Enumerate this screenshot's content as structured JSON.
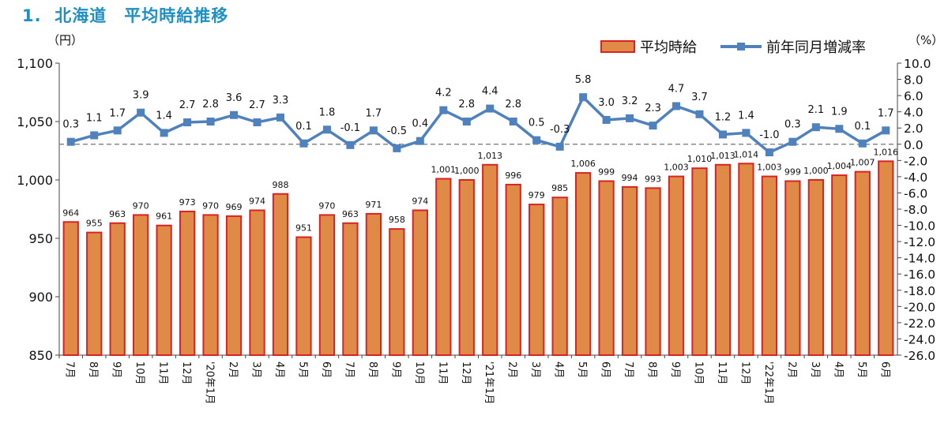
{
  "title": "1.  北海道　平均時給推移",
  "left_unit": "（円）",
  "right_unit": "（%）",
  "legend": {
    "bar": "平均時給",
    "line": "前年同月増減率"
  },
  "colors": {
    "bar_fill": "#e08a47",
    "bar_stroke": "#d92323",
    "line": "#4f81bd",
    "axis": "#444444",
    "zero_line": "#888888"
  },
  "chart_data": {
    "type": "bar+line",
    "title": "1.  北海道　平均時給推移",
    "categories": [
      "7月",
      "8月",
      "9月",
      "10月",
      "11月",
      "12月",
      "'20年1月",
      "2月",
      "3月",
      "4月",
      "5月",
      "6月",
      "7月",
      "8月",
      "9月",
      "10月",
      "11月",
      "12月",
      "'21年1月",
      "2月",
      "3月",
      "4月",
      "5月",
      "6月",
      "7月",
      "8月",
      "9月",
      "10月",
      "11月",
      "12月",
      "'22年1月",
      "2月",
      "3月",
      "4月",
      "5月",
      "6月"
    ],
    "series": [
      {
        "name": "平均時給",
        "axis": "left",
        "type": "bar",
        "values": [
          964,
          955,
          963,
          970,
          961,
          973,
          970,
          969,
          974,
          988,
          951,
          970,
          963,
          971,
          958,
          974,
          1001,
          1000,
          1013,
          996,
          979,
          985,
          1006,
          999,
          994,
          993,
          1003,
          1010,
          1013,
          1014,
          1003,
          999,
          1000,
          1004,
          1007,
          1016
        ],
        "labels": [
          "964",
          "955",
          "963",
          "970",
          "961",
          "973",
          "970",
          "969",
          "974",
          "988",
          "951",
          "970",
          "963",
          "971",
          "958",
          "974",
          "1,001",
          "1,000",
          "1,013",
          "996",
          "979",
          "985",
          "1,006",
          "999",
          "994",
          "993",
          "1,003",
          "1,010",
          "1,013",
          "1,014",
          "1,003",
          "999",
          "1,000",
          "1,004",
          "1,007",
          "1,016"
        ]
      },
      {
        "name": "前年同月増減率",
        "axis": "right",
        "type": "line",
        "values": [
          0.3,
          1.1,
          1.7,
          3.9,
          1.4,
          2.7,
          2.8,
          3.6,
          2.7,
          3.3,
          0.1,
          1.8,
          -0.1,
          1.7,
          -0.5,
          0.4,
          4.2,
          2.8,
          4.4,
          2.8,
          0.5,
          -0.3,
          5.8,
          3.0,
          3.2,
          2.3,
          4.7,
          3.7,
          1.2,
          1.4,
          -1.0,
          0.3,
          2.1,
          1.9,
          0.1,
          1.7
        ],
        "labels": [
          "0.3",
          "1.1",
          "1.7",
          "3.9",
          "1.4",
          "2.7",
          "2.8",
          "3.6",
          "2.7",
          "3.3",
          "0.1",
          "1.8",
          "-0.1",
          "1.7",
          "-0.5",
          "0.4",
          "4.2",
          "2.8",
          "4.4",
          "2.8",
          "0.5",
          "-0.3",
          "5.8",
          "3.0",
          "3.2",
          "2.3",
          "4.7",
          "3.7",
          "1.2",
          "1.4",
          "-1.0",
          "0.3",
          "2.1",
          "1.9",
          "0.1",
          "1.7"
        ]
      }
    ],
    "left_axis": {
      "ylim": [
        850,
        1100
      ],
      "ticks": [
        "850",
        "900",
        "950",
        "1,000",
        "1,050",
        "1,100"
      ],
      "tick_values": [
        850,
        900,
        950,
        1000,
        1050,
        1100
      ]
    },
    "right_axis": {
      "ylim": [
        -26,
        10
      ],
      "ticks": [
        "-26.0",
        "-24.0",
        "-22.0",
        "-20.0",
        "-18.0",
        "-16.0",
        "-14.0",
        "-12.0",
        "-10.0",
        "-8.0",
        "-6.0",
        "-4.0",
        "-2.0",
        "0.0",
        "2.0",
        "4.0",
        "6.0",
        "8.0",
        "10.0"
      ],
      "tick_values": [
        -26,
        -24,
        -22,
        -20,
        -18,
        -16,
        -14,
        -12,
        -10,
        -8,
        -6,
        -4,
        -2,
        0,
        2,
        4,
        6,
        8,
        10
      ]
    },
    "reference_line": {
      "axis": "right",
      "value": 0,
      "style": "dashed"
    },
    "grid": false,
    "legend_position": "top-right"
  }
}
